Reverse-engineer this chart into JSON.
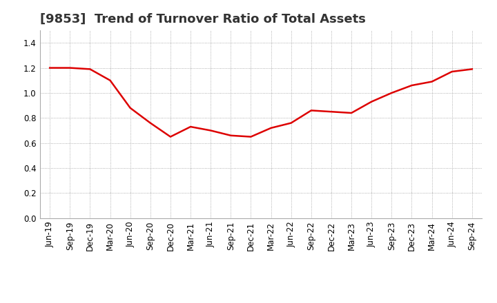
{
  "title": "[9853]  Trend of Turnover Ratio of Total Assets",
  "x_labels": [
    "Jun-19",
    "Sep-19",
    "Dec-19",
    "Mar-20",
    "Jun-20",
    "Sep-20",
    "Dec-20",
    "Mar-21",
    "Jun-21",
    "Sep-21",
    "Dec-21",
    "Mar-22",
    "Jun-22",
    "Sep-22",
    "Dec-22",
    "Mar-23",
    "Jun-23",
    "Sep-23",
    "Dec-23",
    "Mar-24",
    "Jun-24",
    "Sep-24"
  ],
  "y_values": [
    1.2,
    1.2,
    1.19,
    1.1,
    0.88,
    0.76,
    0.65,
    0.73,
    0.7,
    0.66,
    0.65,
    0.72,
    0.76,
    0.86,
    0.85,
    0.84,
    0.93,
    1.0,
    1.06,
    1.09,
    1.17,
    1.19
  ],
  "line_color": "#dd0000",
  "line_width": 1.8,
  "ylim": [
    0.0,
    1.5
  ],
  "yticks": [
    0.0,
    0.2,
    0.4,
    0.6,
    0.8,
    1.0,
    1.2,
    1.4
  ],
  "background_color": "#ffffff",
  "grid_color": "#999999",
  "title_fontsize": 13,
  "tick_fontsize": 8.5,
  "title_color": "#333333"
}
